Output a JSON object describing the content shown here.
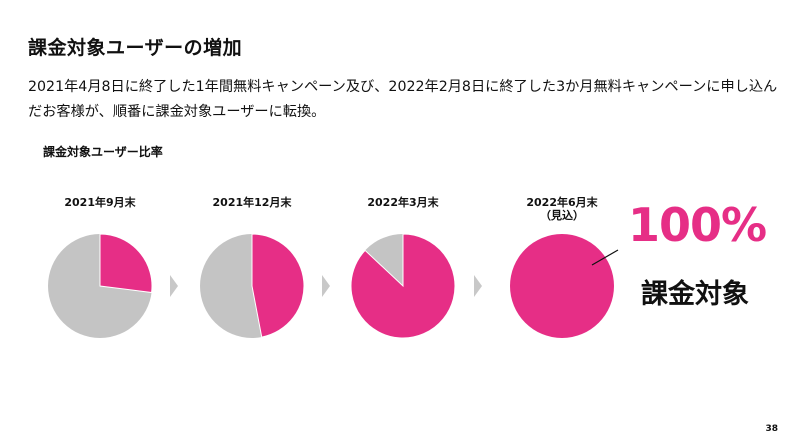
{
  "header": {
    "title": "課金対象ユーザーの増加",
    "description": "2021年4月8日に終了した1年間無料キャンペーン及び、2022年2月8日に終了した3か月無料キャンペーンに申し込んだお客様が、順番に課金対象ユーザーに転換。"
  },
  "colors": {
    "target": "#e62e86",
    "other": "#c4c4c4",
    "arrow": "#c8c8c8"
  },
  "chart_data": {
    "type": "pie",
    "title": "課金対象ユーザー比率",
    "pies": [
      {
        "label": "2021年9月末",
        "sublabel": "",
        "share": 0.27
      },
      {
        "label": "2021年12月末",
        "sublabel": "",
        "share": 0.47
      },
      {
        "label": "2022年3月末",
        "sublabel": "",
        "share": 0.87
      },
      {
        "label": "2022年6月末",
        "sublabel": "（見込）",
        "share": 1.0
      }
    ],
    "annotation": {
      "value": "100%",
      "text": "課金対象"
    }
  },
  "footer": {
    "page": "38"
  }
}
